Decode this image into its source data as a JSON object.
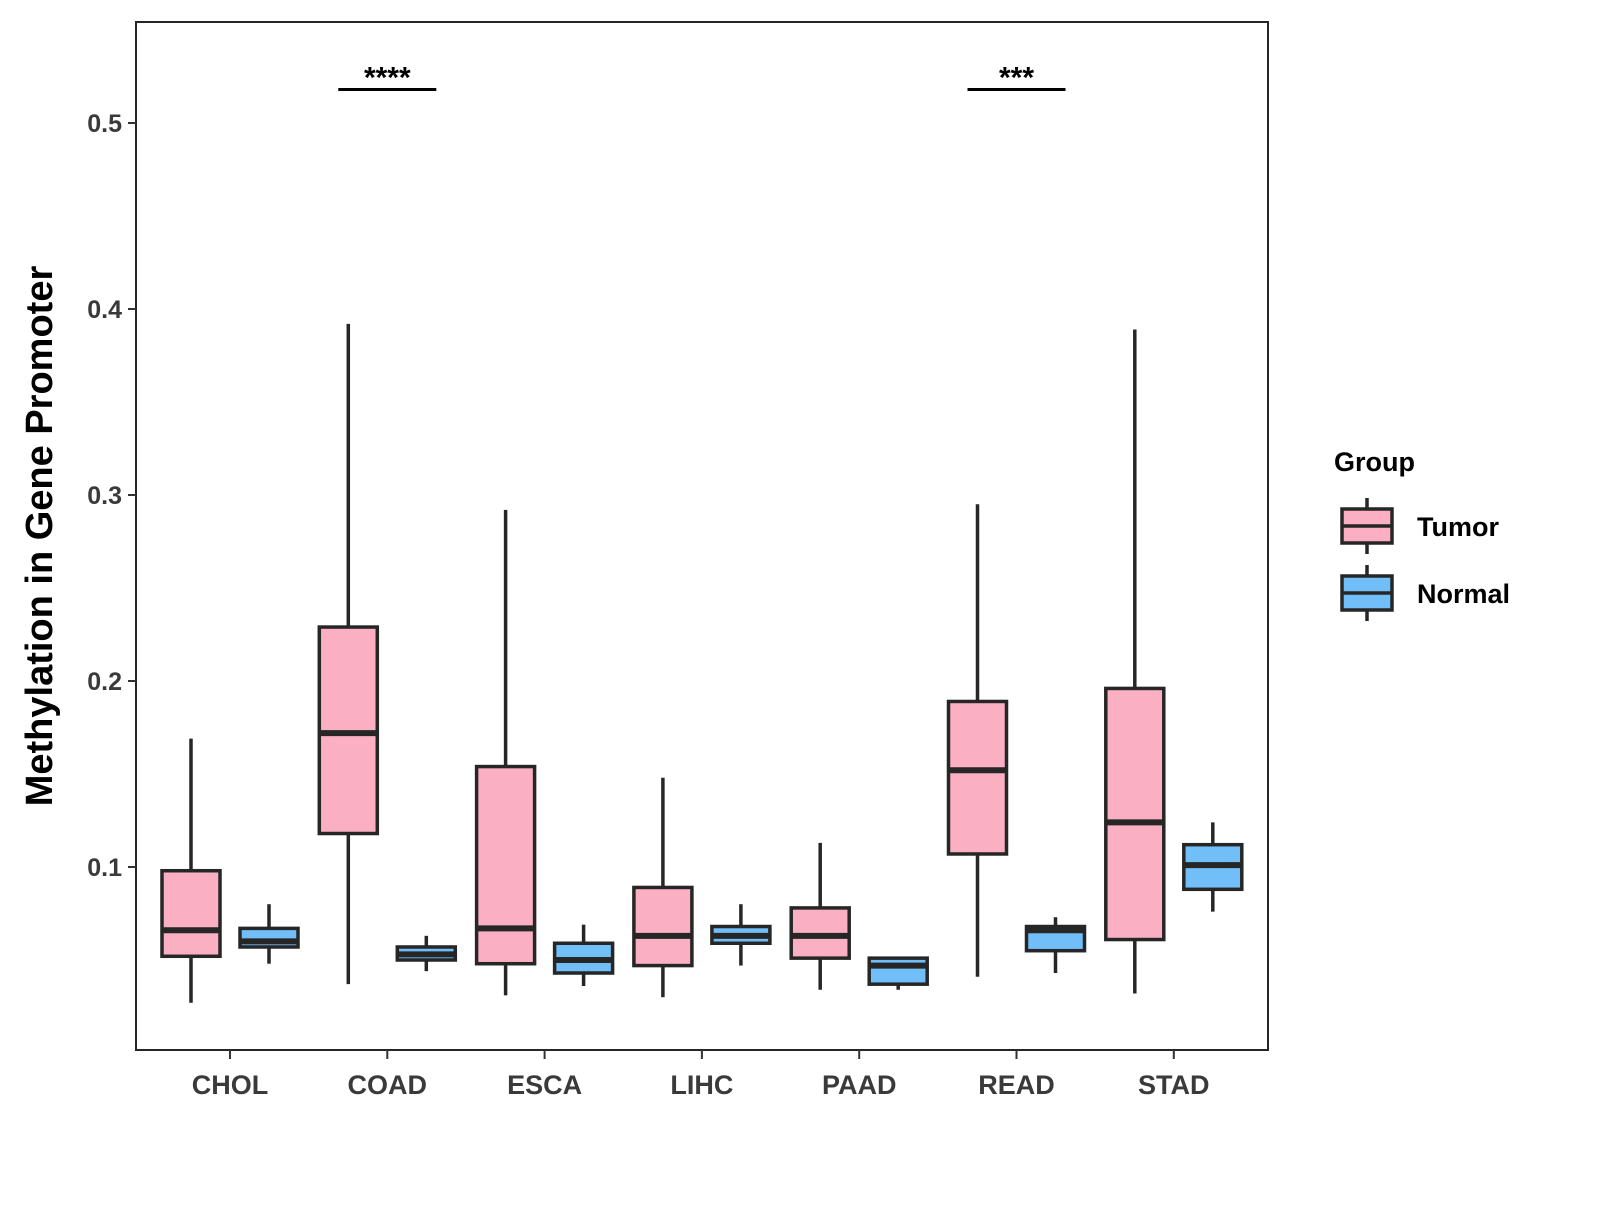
{
  "chart_data": {
    "type": "boxplot",
    "title": "",
    "xlabel": "",
    "ylabel": "Methylation in Gene Promoter",
    "ylim": [
      0.0,
      0.554
    ],
    "yticks": [
      0.1,
      0.2,
      0.3,
      0.4,
      0.5
    ],
    "ytick_labels": [
      "0.1",
      "0.2",
      "0.3",
      "0.4",
      "0.5"
    ],
    "grid": false,
    "categories": [
      "CHOL",
      "COAD",
      "ESCA",
      "LIHC",
      "PAAD",
      "READ",
      "STAD"
    ],
    "legend": {
      "title": "Group",
      "placement": "right",
      "entries": [
        "Tumor",
        "Normal"
      ]
    },
    "colors": {
      "Tumor": "#FBAFC3",
      "Normal": "#71BEF8",
      "stroke": "#262626"
    },
    "series": [
      {
        "name": "Tumor",
        "boxes": [
          {
            "min": 0.027,
            "q1": 0.052,
            "median": 0.066,
            "q3": 0.098,
            "max": 0.169
          },
          {
            "min": 0.037,
            "q1": 0.118,
            "median": 0.172,
            "q3": 0.229,
            "max": 0.392
          },
          {
            "min": 0.031,
            "q1": 0.048,
            "median": 0.067,
            "q3": 0.154,
            "max": 0.292
          },
          {
            "min": 0.03,
            "q1": 0.047,
            "median": 0.063,
            "q3": 0.089,
            "max": 0.148
          },
          {
            "min": 0.034,
            "q1": 0.051,
            "median": 0.063,
            "q3": 0.078,
            "max": 0.113
          },
          {
            "min": 0.041,
            "q1": 0.107,
            "median": 0.152,
            "q3": 0.189,
            "max": 0.295
          },
          {
            "min": 0.032,
            "q1": 0.061,
            "median": 0.124,
            "q3": 0.196,
            "max": 0.389
          }
        ]
      },
      {
        "name": "Normal",
        "boxes": [
          {
            "min": 0.048,
            "q1": 0.057,
            "median": 0.06,
            "q3": 0.067,
            "max": 0.08
          },
          {
            "min": 0.044,
            "q1": 0.05,
            "median": 0.053,
            "q3": 0.057,
            "max": 0.063
          },
          {
            "min": 0.036,
            "q1": 0.043,
            "median": 0.05,
            "q3": 0.059,
            "max": 0.069
          },
          {
            "min": 0.047,
            "q1": 0.059,
            "median": 0.063,
            "q3": 0.068,
            "max": 0.08
          },
          {
            "min": 0.034,
            "q1": 0.037,
            "median": 0.047,
            "q3": 0.051,
            "max": 0.051
          },
          {
            "min": 0.043,
            "q1": 0.055,
            "median": 0.066,
            "q3": 0.068,
            "max": 0.073
          },
          {
            "min": 0.076,
            "q1": 0.088,
            "median": 0.101,
            "q3": 0.112,
            "max": 0.124
          }
        ]
      }
    ],
    "annotations": [
      {
        "category": "COAD",
        "label": "****",
        "y": 0.518
      },
      {
        "category": "READ",
        "label": "***",
        "y": 0.518
      }
    ]
  }
}
